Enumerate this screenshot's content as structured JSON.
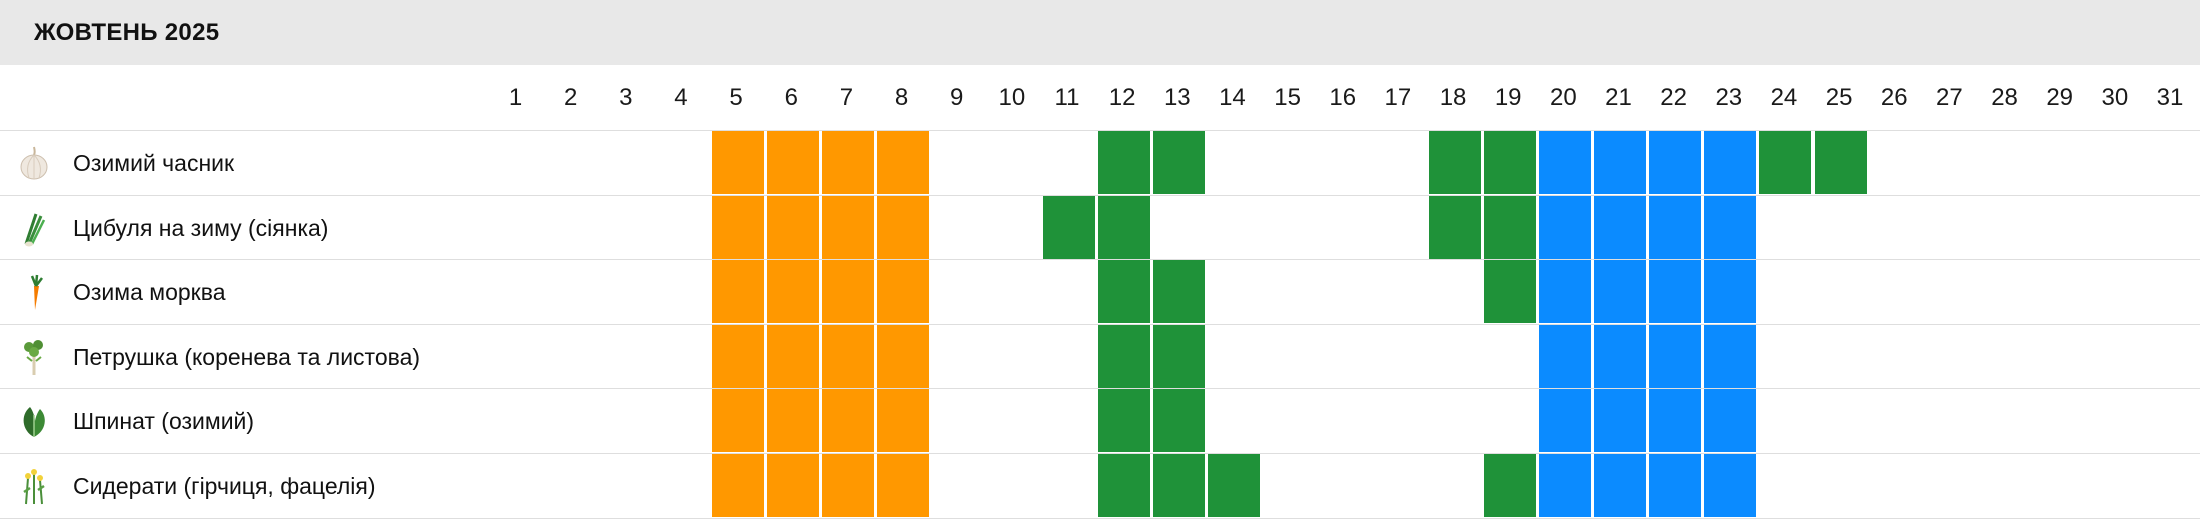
{
  "title": "ЖОВТЕНЬ 2025",
  "days": [
    "1",
    "2",
    "3",
    "4",
    "5",
    "6",
    "7",
    "8",
    "9",
    "10",
    "11",
    "12",
    "13",
    "14",
    "15",
    "16",
    "17",
    "18",
    "19",
    "20",
    "21",
    "22",
    "23",
    "24",
    "25",
    "26",
    "27",
    "28",
    "29",
    "30",
    "31"
  ],
  "status_colors": {
    "orange": "#ff9800",
    "green": "#1f9239",
    "blue": "#0b8bff"
  },
  "rows": [
    {
      "label": "Озимий часник",
      "icon": "garlic-icon",
      "cells": [
        "",
        "",
        "",
        "",
        "orange",
        "orange",
        "orange",
        "orange",
        "",
        "",
        "",
        "green",
        "green",
        "",
        "",
        "",
        "",
        "green",
        "green",
        "blue",
        "blue",
        "blue",
        "blue",
        "green",
        "green",
        "",
        "",
        "",
        "",
        "",
        ""
      ]
    },
    {
      "label": "Цибуля на зиму (сіянка)",
      "icon": "onion-icon",
      "cells": [
        "",
        "",
        "",
        "",
        "orange",
        "orange",
        "orange",
        "orange",
        "",
        "",
        "green",
        "green",
        "",
        "",
        "",
        "",
        "",
        "green",
        "green",
        "blue",
        "blue",
        "blue",
        "blue",
        "",
        "",
        "",
        "",
        "",
        "",
        "",
        ""
      ]
    },
    {
      "label": "Озима морква",
      "icon": "carrot-icon",
      "cells": [
        "",
        "",
        "",
        "",
        "orange",
        "orange",
        "orange",
        "orange",
        "",
        "",
        "",
        "green",
        "green",
        "",
        "",
        "",
        "",
        "",
        "green",
        "blue",
        "blue",
        "blue",
        "blue",
        "",
        "",
        "",
        "",
        "",
        "",
        "",
        ""
      ]
    },
    {
      "label": "Петрушка (коренева та листова)",
      "icon": "parsley-icon",
      "cells": [
        "",
        "",
        "",
        "",
        "orange",
        "orange",
        "orange",
        "orange",
        "",
        "",
        "",
        "green",
        "green",
        "",
        "",
        "",
        "",
        "",
        "",
        "blue",
        "blue",
        "blue",
        "blue",
        "",
        "",
        "",
        "",
        "",
        "",
        "",
        ""
      ]
    },
    {
      "label": "Шпинат (озимий)",
      "icon": "spinach-icon",
      "cells": [
        "",
        "",
        "",
        "",
        "orange",
        "orange",
        "orange",
        "orange",
        "",
        "",
        "",
        "green",
        "green",
        "",
        "",
        "",
        "",
        "",
        "",
        "blue",
        "blue",
        "blue",
        "blue",
        "",
        "",
        "",
        "",
        "",
        "",
        "",
        ""
      ]
    },
    {
      "label": "Сидерати (гірчиця, фацелія)",
      "icon": "green-manure-icon",
      "cells": [
        "",
        "",
        "",
        "",
        "orange",
        "orange",
        "orange",
        "orange",
        "",
        "",
        "",
        "green",
        "green",
        "green",
        "",
        "",
        "",
        "",
        "green",
        "blue",
        "blue",
        "blue",
        "blue",
        "",
        "",
        "",
        "",
        "",
        "",
        "",
        ""
      ]
    }
  ]
}
